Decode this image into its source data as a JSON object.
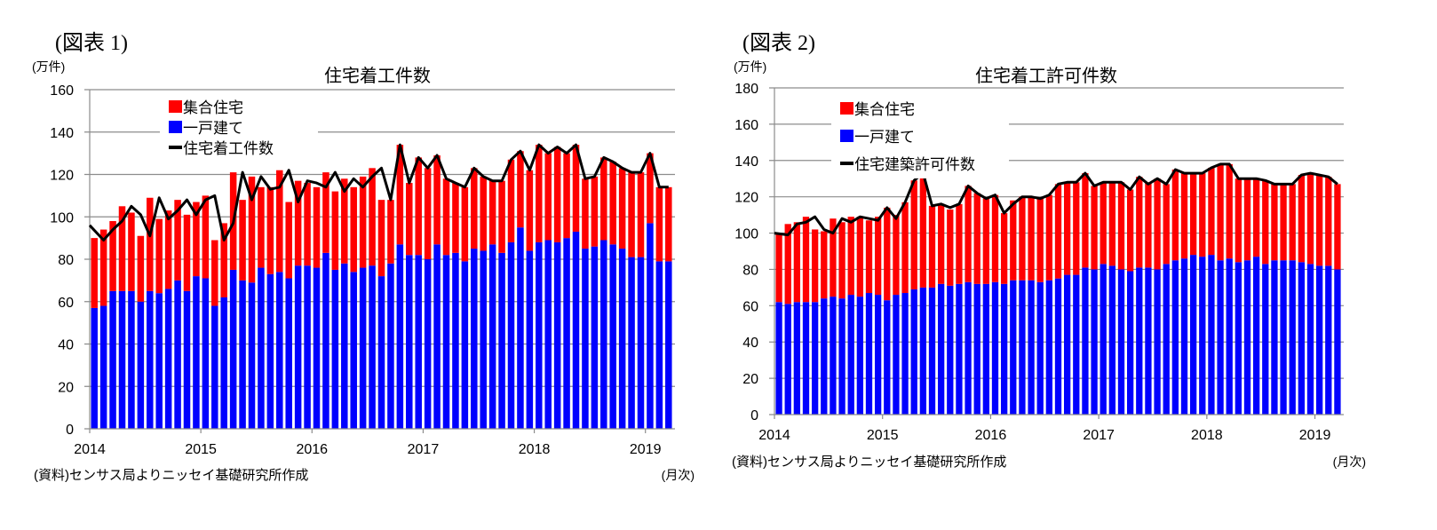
{
  "chart_data": [
    {
      "figure_label": "(図表 1)",
      "type": "bar",
      "stacked": true,
      "title": "住宅着工件数",
      "unit_label": "(万件)",
      "xlabel": "(月次)",
      "source": "(資料)センサス局よりニッセイ基礎研究所作成",
      "ylim": [
        0,
        160
      ],
      "yticks": [
        0,
        20,
        40,
        60,
        80,
        100,
        120,
        140,
        160
      ],
      "xticks": [
        "2014",
        "2015",
        "2016",
        "2017",
        "2018",
        "2019"
      ],
      "start": "2014-01",
      "months": 63,
      "grid": true,
      "legend_position": "top-left",
      "legend": [
        "集合住宅",
        "一戸建て",
        "住宅着工件数"
      ],
      "colors": {
        "multi": "#ff0000",
        "single": "#0000ff",
        "line": "#000000"
      },
      "series": [
        {
          "name": "一戸建て",
          "values": [
            57,
            58,
            65,
            65,
            65,
            60,
            65,
            64,
            66,
            70,
            65,
            72,
            71,
            58,
            62,
            75,
            70,
            69,
            76,
            73,
            74,
            71,
            77,
            77,
            76,
            83,
            75,
            78,
            74,
            76,
            77,
            72,
            78,
            87,
            82,
            82,
            80,
            87,
            82,
            83,
            79,
            85,
            84,
            87,
            83,
            88,
            95,
            84,
            88,
            89,
            88,
            90,
            93,
            85,
            86,
            89,
            87,
            85,
            81,
            81,
            97,
            79,
            79
          ]
        },
        {
          "name": "集合住宅",
          "values": [
            33,
            36,
            33,
            40,
            37,
            31,
            44,
            35,
            37,
            38,
            36,
            35,
            39,
            31,
            35,
            46,
            38,
            50,
            38,
            41,
            48,
            36,
            40,
            39,
            38,
            38,
            37,
            40,
            40,
            43,
            46,
            36,
            30,
            47,
            34,
            46,
            43,
            42,
            36,
            33,
            35,
            38,
            35,
            30,
            34,
            39,
            36,
            38,
            46,
            41,
            45,
            40,
            41,
            33,
            33,
            39,
            39,
            38,
            40,
            40,
            33,
            35,
            35
          ]
        },
        {
          "name": "住宅着工件数",
          "values": [
            96,
            89,
            94,
            98,
            105,
            101,
            91,
            109,
            99,
            103,
            108,
            101,
            108,
            110,
            89,
            97,
            121,
            108,
            119,
            113,
            114,
            122,
            107,
            117,
            116,
            114,
            121,
            112,
            118,
            114,
            119,
            123,
            108,
            134,
            116,
            128,
            123,
            129,
            118,
            116,
            114,
            123,
            119,
            117,
            117,
            127,
            131,
            122,
            134,
            130,
            133,
            130,
            134,
            118,
            119,
            128,
            126,
            123,
            121,
            121,
            130,
            114,
            114
          ]
        }
      ]
    },
    {
      "figure_label": "(図表 2)",
      "type": "bar",
      "stacked": true,
      "title": "住宅着工許可件数",
      "unit_label": "(万件)",
      "xlabel": "(月次)",
      "source": "(資料)センサス局よりニッセイ基礎研究所作成",
      "ylim": [
        0,
        180
      ],
      "yticks": [
        0,
        20,
        40,
        60,
        80,
        100,
        120,
        140,
        160,
        180
      ],
      "xticks": [
        "2014",
        "2015",
        "2016",
        "2017",
        "2018",
        "2019"
      ],
      "start": "2014-01",
      "months": 63,
      "grid": true,
      "legend_position": "top-left",
      "legend": [
        "集合住宅",
        "一戸建て",
        "住宅建築許可件数"
      ],
      "colors": {
        "multi": "#ff0000",
        "single": "#0000ff",
        "line": "#000000"
      },
      "series": [
        {
          "name": "一戸建て",
          "values": [
            62,
            61,
            62,
            62,
            62,
            64,
            65,
            64,
            66,
            65,
            67,
            66,
            63,
            66,
            67,
            69,
            70,
            70,
            72,
            71,
            72,
            73,
            72,
            72,
            73,
            72,
            74,
            74,
            74,
            73,
            74,
            75,
            77,
            77,
            81,
            80,
            83,
            82,
            80,
            79,
            81,
            81,
            80,
            83,
            85,
            86,
            88,
            87,
            88,
            85,
            86,
            84,
            85,
            87,
            83,
            85,
            85,
            85,
            84,
            83,
            82,
            82,
            80
          ]
        },
        {
          "name": "集合住宅",
          "values": [
            38,
            44,
            44,
            47,
            40,
            37,
            43,
            42,
            43,
            44,
            40,
            43,
            51,
            44,
            50,
            60,
            63,
            45,
            44,
            42,
            44,
            53,
            50,
            47,
            48,
            39,
            44,
            46,
            46,
            46,
            47,
            52,
            51,
            51,
            52,
            46,
            45,
            46,
            48,
            45,
            50,
            47,
            50,
            44,
            50,
            47,
            45,
            46,
            48,
            53,
            52,
            46,
            45,
            43,
            46,
            42,
            42,
            42,
            48,
            50,
            50,
            49,
            47
          ]
        },
        {
          "name": "住宅建築許可件数",
          "values": [
            100,
            99,
            105,
            106,
            109,
            102,
            100,
            108,
            106,
            109,
            108,
            107,
            114,
            108,
            117,
            129,
            133,
            115,
            116,
            114,
            116,
            126,
            122,
            119,
            121,
            111,
            116,
            120,
            120,
            119,
            121,
            127,
            128,
            128,
            133,
            126,
            128,
            128,
            128,
            124,
            131,
            127,
            130,
            127,
            135,
            133,
            133,
            133,
            136,
            138,
            138,
            130,
            130,
            130,
            129,
            127,
            127,
            127,
            132,
            133,
            132,
            131,
            127
          ]
        }
      ]
    }
  ]
}
